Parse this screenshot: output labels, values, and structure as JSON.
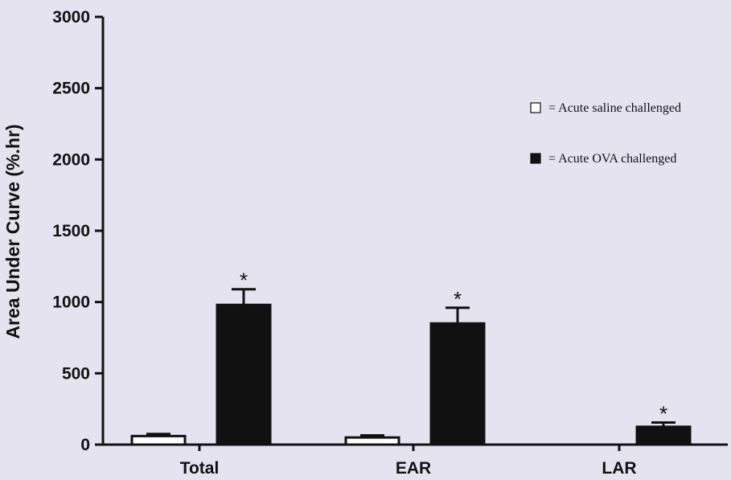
{
  "chart_data": {
    "type": "bar",
    "ylabel": "Area Under Curve (%.hr)",
    "xlabel": "",
    "ylim": [
      0,
      3000
    ],
    "yticks": [
      0,
      500,
      1000,
      1500,
      2000,
      2500,
      3000
    ],
    "categories": [
      "Total",
      "EAR",
      "LAR"
    ],
    "series": [
      {
        "name": "= Acute saline challenged",
        "fill": "#ffffff",
        "values": [
          60,
          50,
          0
        ],
        "errors": [
          15,
          15,
          0
        ],
        "significance": [
          "",
          "",
          ""
        ]
      },
      {
        "name": "= Acute OVA challenged",
        "fill": "#111111",
        "values": [
          980,
          850,
          125
        ],
        "errors": [
          110,
          110,
          30
        ],
        "significance": [
          "*",
          "*",
          "*"
        ]
      }
    ],
    "legend_position": "right",
    "grid": false
  },
  "colors": {
    "background": "#e6e3f1",
    "axis": "#111111"
  }
}
